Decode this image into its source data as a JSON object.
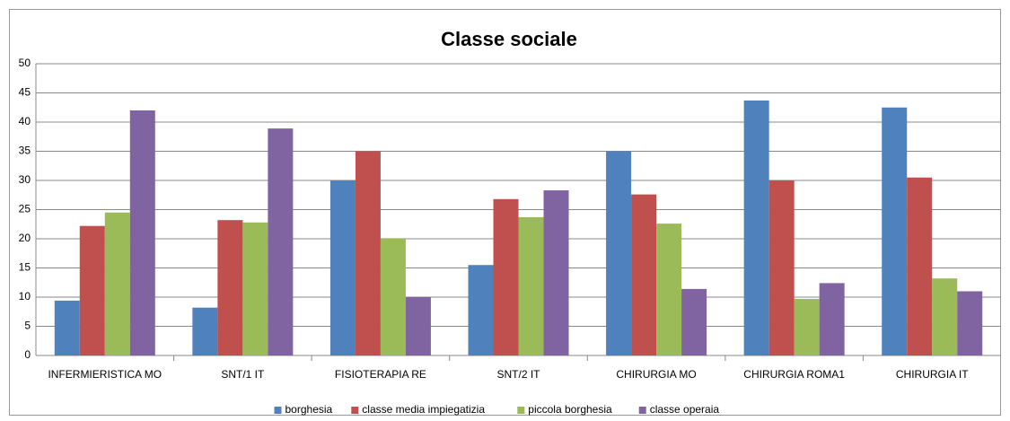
{
  "chart_data": {
    "type": "bar",
    "title": "Classe sociale",
    "categories": [
      "INFERMIERISTICA MO",
      "SNT/1 IT",
      "FISIOTERAPIA RE",
      "SNT/2 IT",
      "CHIRURGIA MO",
      "CHIRURGIA ROMA1",
      "CHIRURGIA IT"
    ],
    "series": [
      {
        "name": "borghesia",
        "color": "#4f81bd",
        "values": [
          9.4,
          8.2,
          30,
          15.5,
          35,
          43.7,
          42.5
        ]
      },
      {
        "name": "classe media impiegatizia",
        "color": "#c0504d",
        "values": [
          22.2,
          23.2,
          35,
          26.8,
          27.6,
          30,
          30.5
        ]
      },
      {
        "name": "piccola borghesia",
        "color": "#9bbb59",
        "values": [
          24.5,
          22.8,
          20,
          23.7,
          22.6,
          9.7,
          13.2
        ]
      },
      {
        "name": "classe operaia",
        "color": "#8064a2",
        "values": [
          42,
          38.9,
          10,
          28.3,
          11.4,
          12.4,
          11
        ]
      }
    ],
    "ylim": [
      0,
      50
    ],
    "yticks": [
      0,
      5,
      10,
      15,
      20,
      25,
      30,
      35,
      40,
      45,
      50
    ],
    "grid": true,
    "legend": "bottom"
  }
}
